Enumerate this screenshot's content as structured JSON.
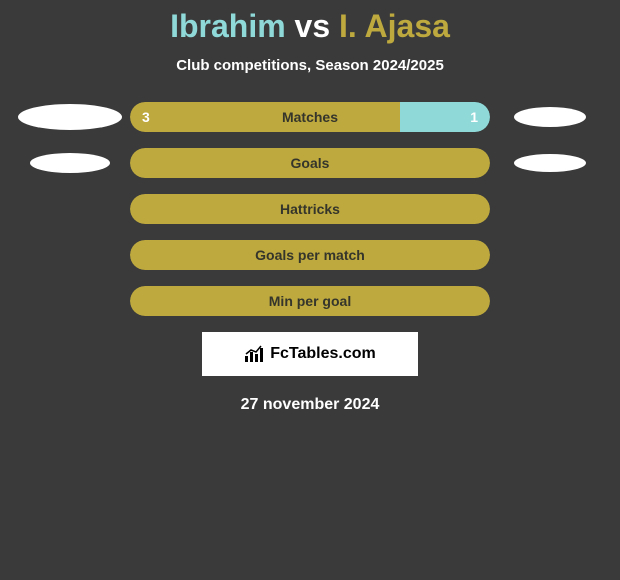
{
  "header": {
    "player1": "Ibrahim",
    "vs": "vs",
    "player2": "I. Ajasa",
    "player1_color": "#8fd9d9",
    "vs_color": "#ffffff",
    "player2_color": "#bda93e",
    "subtitle": "Club competitions, Season 2024/2025"
  },
  "chart": {
    "bar_label_color": "#35352b",
    "rows": [
      {
        "label": "Matches",
        "left_value": "3",
        "right_value": "1",
        "left_pct": 75,
        "right_pct": 25,
        "left_color": "#bda93e",
        "right_color": "#8fd9d9",
        "ellipse_left": {
          "w": 104,
          "h": 26
        },
        "ellipse_right": {
          "w": 72,
          "h": 20
        }
      },
      {
        "label": "Goals",
        "left_value": "",
        "right_value": "",
        "left_pct": 100,
        "right_pct": 0,
        "left_color": "#bda93e",
        "right_color": "#8fd9d9",
        "ellipse_left": {
          "w": 80,
          "h": 20
        },
        "ellipse_right": {
          "w": 72,
          "h": 18
        }
      },
      {
        "label": "Hattricks",
        "left_value": "",
        "right_value": "",
        "left_pct": 100,
        "right_pct": 0,
        "left_color": "#bda93e",
        "right_color": "#8fd9d9",
        "ellipse_left": null,
        "ellipse_right": null
      },
      {
        "label": "Goals per match",
        "left_value": "",
        "right_value": "",
        "left_pct": 100,
        "right_pct": 0,
        "left_color": "#bda93e",
        "right_color": "#8fd9d9",
        "ellipse_left": null,
        "ellipse_right": null
      },
      {
        "label": "Min per goal",
        "left_value": "",
        "right_value": "",
        "left_pct": 100,
        "right_pct": 0,
        "left_color": "#bda93e",
        "right_color": "#8fd9d9",
        "ellipse_left": null,
        "ellipse_right": null
      }
    ]
  },
  "footer": {
    "logo_text": "FcTables.com",
    "date": "27 november 2024"
  },
  "style": {
    "background": "#3a3a3a",
    "logo_bg": "#ffffff"
  }
}
